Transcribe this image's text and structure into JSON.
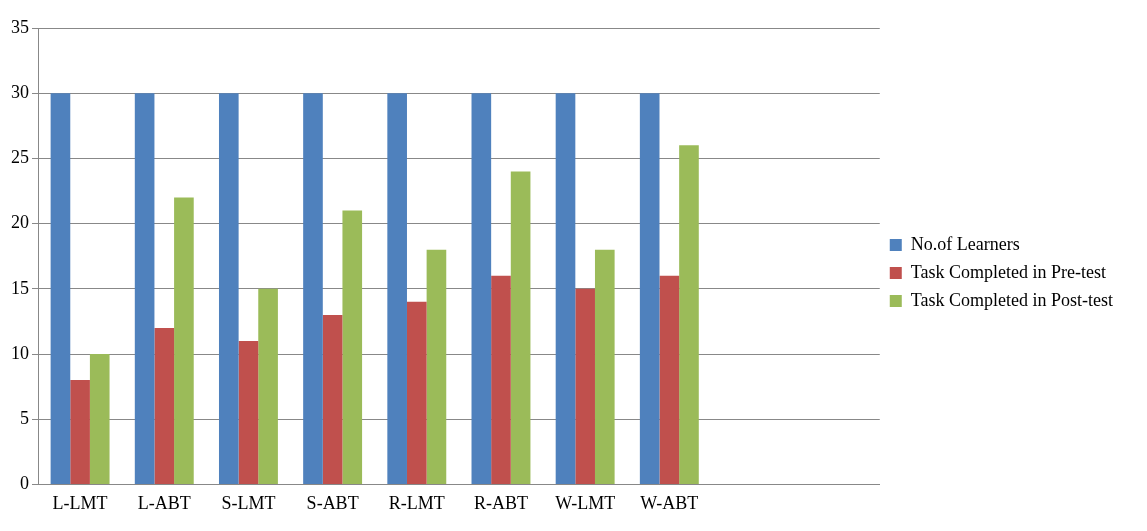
{
  "chart_data": {
    "type": "bar",
    "categories": [
      "L-LMT",
      "L-ABT",
      "S-LMT",
      "S-ABT",
      "R-LMT",
      "R-ABT",
      "W-LMT",
      "W-ABT",
      null,
      null
    ],
    "series": [
      {
        "name": "No.of Learners",
        "color": "#4f81bd",
        "values": [
          30,
          30,
          30,
          30,
          30,
          30,
          30,
          30,
          null,
          null
        ]
      },
      {
        "name": "Task Completed in Pre-test",
        "color": "#c0504d",
        "values": [
          8,
          12,
          11,
          13,
          14,
          16,
          15,
          16,
          null,
          null
        ]
      },
      {
        "name": "Task Completed in Post-test",
        "color": "#9bbb59",
        "values": [
          10,
          22,
          15,
          21,
          18,
          24,
          18,
          26,
          null,
          null
        ]
      }
    ],
    "ylim": [
      0,
      35
    ],
    "yticks": [
      0,
      5,
      10,
      15,
      20,
      25,
      30,
      35
    ],
    "grid": "y",
    "legend": "right"
  }
}
